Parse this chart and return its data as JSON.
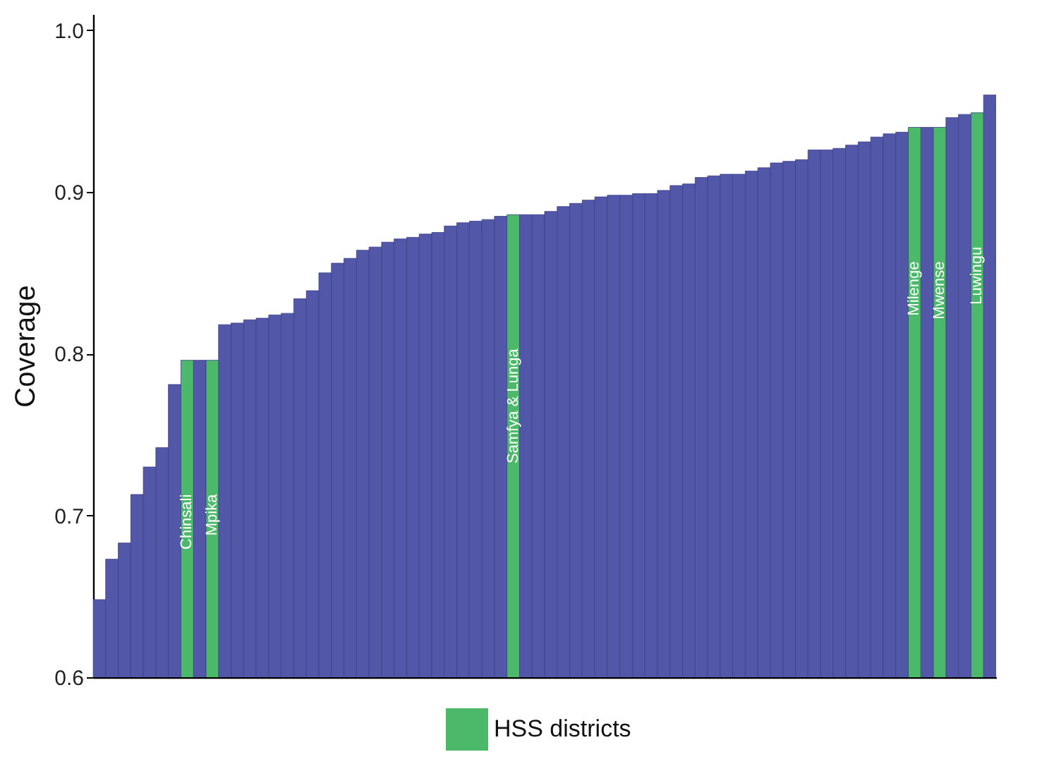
{
  "chart_data": {
    "type": "bar",
    "ylabel": "Coverage",
    "categories": [
      null,
      null,
      null,
      null,
      null,
      null,
      null,
      "Chinsali",
      null,
      "Mpika",
      null,
      null,
      null,
      null,
      null,
      null,
      null,
      null,
      null,
      null,
      null,
      null,
      null,
      null,
      null,
      null,
      null,
      null,
      null,
      null,
      null,
      null,
      null,
      "Samfya & Lunga",
      null,
      null,
      null,
      null,
      null,
      null,
      null,
      null,
      null,
      null,
      null,
      null,
      null,
      null,
      null,
      null,
      null,
      null,
      null,
      null,
      null,
      null,
      null,
      null,
      null,
      null,
      null,
      null,
      null,
      null,
      null,
      "Milenge",
      null,
      "Mwense",
      null,
      null,
      "Luwingu",
      null
    ],
    "series": [
      {
        "color": "#5357a8",
        "values": [
          0.648,
          0.673,
          0.683,
          0.713,
          0.73,
          0.742,
          0.781,
          null,
          0.796,
          null,
          0.818,
          0.819,
          0.821,
          0.822,
          0.824,
          0.825,
          0.834,
          0.839,
          0.85,
          0.856,
          0.859,
          0.864,
          0.866,
          0.869,
          0.871,
          0.872,
          0.874,
          0.875,
          0.879,
          0.881,
          0.882,
          0.883,
          0.885,
          null,
          0.886,
          0.886,
          0.888,
          0.891,
          0.893,
          0.895,
          0.897,
          0.898,
          0.898,
          0.899,
          0.899,
          0.901,
          0.904,
          0.905,
          0.909,
          0.91,
          0.911,
          0.911,
          0.913,
          0.915,
          0.918,
          0.919,
          0.92,
          0.926,
          0.926,
          0.927,
          0.929,
          0.931,
          0.934,
          0.936,
          0.937,
          null,
          0.94,
          null,
          0.946,
          0.948,
          null,
          0.96
        ]
      },
      {
        "name": "HSS districts",
        "color": "#4cb86a",
        "values": [
          null,
          null,
          null,
          null,
          null,
          null,
          null,
          0.796,
          null,
          0.796,
          null,
          null,
          null,
          null,
          null,
          null,
          null,
          null,
          null,
          null,
          null,
          null,
          null,
          null,
          null,
          null,
          null,
          null,
          null,
          null,
          null,
          null,
          null,
          0.886,
          null,
          null,
          null,
          null,
          null,
          null,
          null,
          null,
          null,
          null,
          null,
          null,
          null,
          null,
          null,
          null,
          null,
          null,
          null,
          null,
          null,
          null,
          null,
          null,
          null,
          null,
          null,
          null,
          null,
          null,
          null,
          0.94,
          null,
          0.94,
          null,
          null,
          0.949,
          null
        ]
      }
    ],
    "ylim": [
      0.6,
      1.01
    ],
    "yticks": [
      0.6,
      0.7,
      0.8,
      0.9,
      {
        "value": 1.0,
        "label": "1.0"
      }
    ],
    "tick_labels": "y",
    "grid": false,
    "legend": "bottom"
  }
}
